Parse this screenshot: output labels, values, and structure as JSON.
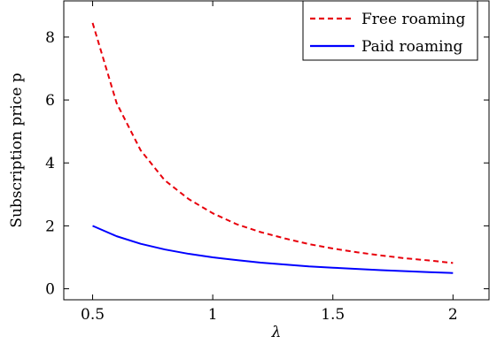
{
  "chart_data": {
    "type": "line",
    "xlabel": "λ",
    "ylabel": "Subscription price p",
    "xlim": [
      0.38,
      2.15
    ],
    "ylim": [
      -0.35,
      9.15
    ],
    "xticks": [
      0.5,
      1,
      1.5,
      2
    ],
    "xtick_labels": [
      "0.5",
      "1",
      "1.5",
      "2"
    ],
    "yticks": [
      0,
      2,
      4,
      6,
      8
    ],
    "ytick_labels": [
      "0",
      "2",
      "4",
      "6",
      "8"
    ],
    "grid": false,
    "legend_position": "top-right",
    "series": [
      {
        "name": "Free roaming",
        "color": "#e8000b",
        "style": "dashed",
        "x": [
          0.5,
          0.6,
          0.7,
          0.8,
          0.9,
          1.0,
          1.1,
          1.2,
          1.3,
          1.4,
          1.5,
          1.6,
          1.7,
          1.8,
          1.9,
          2.0
        ],
        "y": [
          8.45,
          5.9,
          4.4,
          3.45,
          2.85,
          2.4,
          2.05,
          1.8,
          1.6,
          1.42,
          1.28,
          1.16,
          1.06,
          0.97,
          0.9,
          0.82
        ]
      },
      {
        "name": "Paid roaming",
        "color": "#0000ff",
        "style": "solid",
        "x": [
          0.5,
          0.6,
          0.7,
          0.8,
          0.9,
          1.0,
          1.1,
          1.2,
          1.3,
          1.4,
          1.5,
          1.6,
          1.7,
          1.8,
          1.9,
          2.0
        ],
        "y": [
          2.0,
          1.67,
          1.43,
          1.25,
          1.11,
          1.0,
          0.91,
          0.83,
          0.77,
          0.71,
          0.67,
          0.63,
          0.59,
          0.56,
          0.53,
          0.5
        ]
      }
    ]
  }
}
